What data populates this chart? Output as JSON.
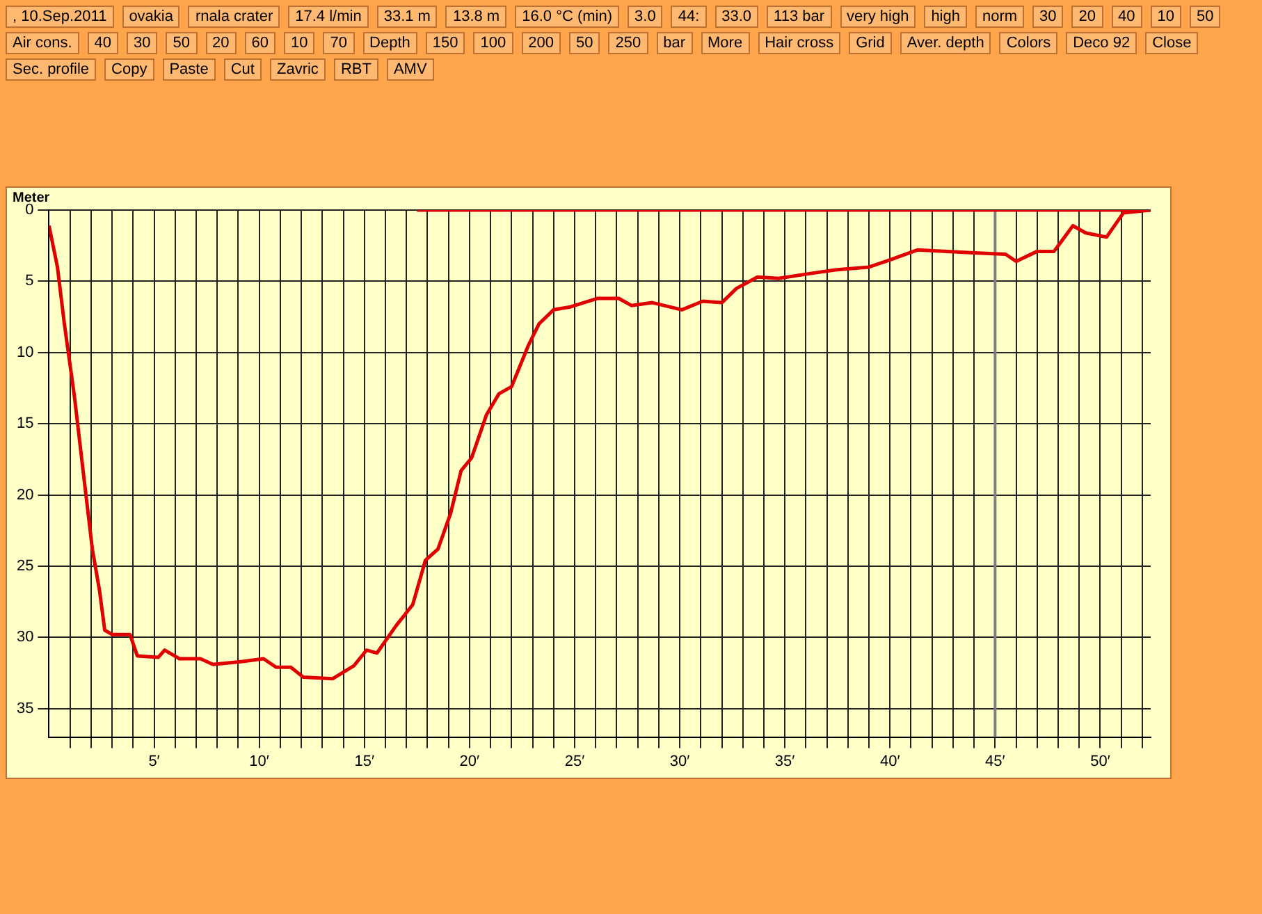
{
  "chart_data": {
    "type": "line",
    "ylabel": "Meter",
    "x": [
      0,
      0.4,
      0.73,
      1.2,
      1.66,
      2.06,
      2.4,
      2.65,
      3.0,
      3.85,
      4.2,
      5.2,
      5.5,
      6.2,
      7.2,
      7.8,
      9.2,
      10.2,
      10.8,
      11.5,
      12.1,
      13.5,
      14.5,
      15.1,
      15.6,
      16.5,
      17.3,
      17.9,
      18.5,
      19.1,
      19.6,
      20.1,
      20.8,
      21.4,
      22,
      22.8,
      23.3,
      24,
      24.8,
      26.1,
      27.1,
      27.7,
      28.7,
      30.1,
      31.1,
      32,
      32.7,
      33.7,
      34.7,
      36,
      37.4,
      39,
      40,
      41.3,
      42.7,
      44,
      45.5,
      46,
      47,
      47.8,
      48.7,
      49.3,
      50.3,
      51.1,
      52.4
    ],
    "series": [
      {
        "color": "#e00000",
        "values": [
          1.1,
          4,
          8,
          13,
          18.8,
          23.8,
          26.7,
          29.5,
          29.8,
          29.8,
          31.3,
          31.4,
          30.9,
          31.5,
          31.5,
          31.9,
          31.7,
          31.5,
          32.1,
          32.1,
          32.8,
          32.9,
          32.0,
          30.9,
          31.1,
          29.2,
          27.7,
          24.6,
          23.8,
          21.3,
          18.3,
          17.4,
          14.4,
          12.9,
          12.4,
          9.5,
          8.0,
          7.0,
          6.8,
          6.2,
          6.2,
          6.7,
          6.5,
          7.0,
          6.4,
          6.5,
          5.5,
          4.7,
          4.8,
          4.5,
          4.2,
          4.0,
          3.5,
          2.8,
          2.9,
          3.0,
          3.1,
          3.6,
          2.9,
          2.9,
          1.1,
          1.6,
          1.9,
          0.2,
          0
        ]
      },
      {
        "color": "#e00000",
        "x": [
          17.5,
          52.4
        ],
        "values": [
          0,
          0
        ]
      }
    ],
    "xlim": [
      0,
      52.4
    ],
    "ylim": [
      37,
      0
    ],
    "xticks": [
      {
        "value": 1,
        "label": null
      },
      {
        "value": 2,
        "label": null
      },
      {
        "value": 3,
        "label": null
      },
      {
        "value": 4,
        "label": null
      },
      {
        "value": 5,
        "label": "5′"
      },
      {
        "value": 6,
        "label": null
      },
      {
        "value": 7,
        "label": null
      },
      {
        "value": 8,
        "label": null
      },
      {
        "value": 9,
        "label": null
      },
      {
        "value": 10,
        "label": "10′"
      },
      {
        "value": 11,
        "label": null
      },
      {
        "value": 12,
        "label": null
      },
      {
        "value": 13,
        "label": null
      },
      {
        "value": 14,
        "label": null
      },
      {
        "value": 15,
        "label": "15′"
      },
      {
        "value": 16,
        "label": null
      },
      {
        "value": 17,
        "label": null
      },
      {
        "value": 18,
        "label": null
      },
      {
        "value": 19,
        "label": null
      },
      {
        "value": 20,
        "label": "20′"
      },
      {
        "value": 21,
        "label": null
      },
      {
        "value": 22,
        "label": null
      },
      {
        "value": 23,
        "label": null
      },
      {
        "value": 24,
        "label": null
      },
      {
        "value": 25,
        "label": "25′"
      },
      {
        "value": 26,
        "label": null
      },
      {
        "value": 27,
        "label": null
      },
      {
        "value": 28,
        "label": null
      },
      {
        "value": 29,
        "label": null
      },
      {
        "value": 30,
        "label": "30′"
      },
      {
        "value": 31,
        "label": null
      },
      {
        "value": 32,
        "label": null
      },
      {
        "value": 33,
        "label": null
      },
      {
        "value": 34,
        "label": null
      },
      {
        "value": 35,
        "label": "35′"
      },
      {
        "value": 36,
        "label": null
      },
      {
        "value": 37,
        "label": null
      },
      {
        "value": 38,
        "label": null
      },
      {
        "value": 39,
        "label": null
      },
      {
        "value": 40,
        "label": "40′"
      },
      {
        "value": 41,
        "label": null
      },
      {
        "value": 42,
        "label": null
      },
      {
        "value": 43,
        "label": null
      },
      {
        "value": 44,
        "label": null
      },
      {
        "value": 45,
        "label": "45′"
      },
      {
        "value": 46,
        "label": null
      },
      {
        "value": 47,
        "label": null
      },
      {
        "value": 48,
        "label": null
      },
      {
        "value": 49,
        "label": null
      },
      {
        "value": 50,
        "label": "50′"
      },
      {
        "value": 51,
        "label": null
      },
      {
        "value": 52,
        "label": null
      }
    ],
    "yticks": [
      0,
      5,
      10,
      15,
      20,
      25,
      30,
      35
    ],
    "grid": true,
    "marker": "none",
    "line_style": "solid",
    "ref_lines": [
      {
        "axis": "x",
        "value": 45,
        "label": null,
        "color": "#808080"
      }
    ],
    "annotations": [
      ", 10.Sep.2011",
      "ovakia",
      "rnala crater",
      "17.4 l/min",
      "33.1 m",
      "13.8 m",
      "16.0 °C (min)",
      "3.0",
      "44:",
      "33.0",
      "113 bar",
      "very high",
      "high",
      "norm",
      "30",
      "20",
      "40",
      "10",
      "50",
      "Air cons.",
      "40",
      "30",
      "50",
      "20",
      "60",
      "10",
      "70",
      "Depth",
      "150",
      "100",
      "200",
      "50",
      "250",
      "bar",
      "More",
      "Hair cross",
      "Grid",
      "Aver. depth",
      "Colors",
      "Deco 92",
      "Close",
      "Sec. profile",
      "Copy",
      "Paste",
      "Cut",
      "Zavric",
      "RBT",
      "AMV"
    ]
  }
}
